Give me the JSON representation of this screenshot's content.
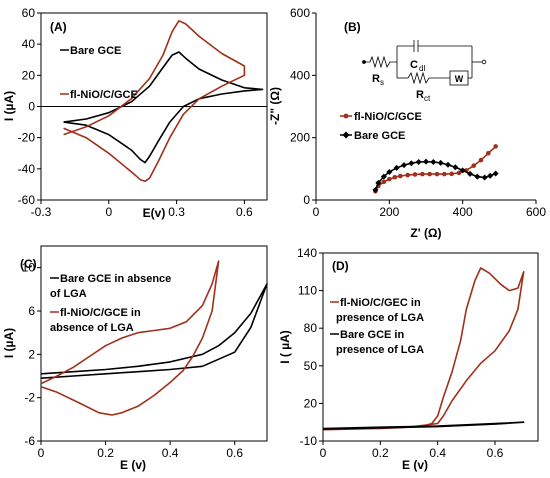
{
  "colors": {
    "bare": "#000000",
    "nio": "#a0301b"
  },
  "chart_data": [
    {
      "id": "A",
      "type": "line",
      "panel_label": "(A)",
      "xlabel": "E(v)",
      "ylabel": "I (µA)",
      "xlim": [
        -0.3,
        0.7
      ],
      "ylim": [
        -60,
        60
      ],
      "xticks": [
        -0.3,
        0,
        0.3,
        0.6
      ],
      "xtick_labels": [
        "-0.3",
        "0",
        "0.3",
        "0.6"
      ],
      "yticks": [
        -60,
        -40,
        -20,
        0,
        20,
        40,
        60
      ],
      "ytick_labels": [
        "-60",
        "-40",
        "-20",
        "0",
        "20",
        "40",
        "60"
      ],
      "legend": [
        "Bare GCE",
        "fl-NiO/C/GCE"
      ],
      "series": [
        {
          "name": "Bare GCE",
          "color": "#000000",
          "marker": "none",
          "points": [
            [
              -0.2,
              -10
            ],
            [
              -0.1,
              -8
            ],
            [
              0,
              -4
            ],
            [
              0.1,
              3
            ],
            [
              0.18,
              13
            ],
            [
              0.24,
              25
            ],
            [
              0.28,
              33
            ],
            [
              0.31,
              35
            ],
            [
              0.34,
              31
            ],
            [
              0.4,
              24
            ],
            [
              0.5,
              17
            ],
            [
              0.6,
              12
            ],
            [
              0.68,
              11
            ],
            [
              0.6,
              10
            ],
            [
              0.5,
              8
            ],
            [
              0.4,
              5
            ],
            [
              0.33,
              0
            ],
            [
              0.27,
              -10
            ],
            [
              0.22,
              -22
            ],
            [
              0.18,
              -32
            ],
            [
              0.16,
              -36
            ],
            [
              0.14,
              -34
            ],
            [
              0.1,
              -28
            ],
            [
              0,
              -18
            ],
            [
              -0.1,
              -12
            ],
            [
              -0.2,
              -10
            ]
          ]
        },
        {
          "name": "fl-NiO/C/GCE",
          "color": "#a0301b",
          "marker": "none",
          "points": [
            [
              -0.2,
              -18
            ],
            [
              -0.1,
              -13
            ],
            [
              0,
              -6
            ],
            [
              0.1,
              5
            ],
            [
              0.18,
              18
            ],
            [
              0.24,
              33
            ],
            [
              0.28,
              48
            ],
            [
              0.31,
              55
            ],
            [
              0.34,
              53
            ],
            [
              0.4,
              45
            ],
            [
              0.5,
              34
            ],
            [
              0.6,
              26
            ],
            [
              0.6,
              20
            ],
            [
              0.5,
              13
            ],
            [
              0.4,
              5
            ],
            [
              0.33,
              -5
            ],
            [
              0.27,
              -20
            ],
            [
              0.22,
              -35
            ],
            [
              0.18,
              -46
            ],
            [
              0.16,
              -48
            ],
            [
              0.14,
              -47
            ],
            [
              0.1,
              -42
            ],
            [
              0,
              -30
            ],
            [
              -0.1,
              -20
            ],
            [
              -0.2,
              -14
            ]
          ]
        }
      ]
    },
    {
      "id": "B",
      "type": "line",
      "panel_label": "(B)",
      "xlabel": "Z' (Ω)",
      "ylabel": "-Z\" (Ω)",
      "xlim": [
        0,
        600
      ],
      "ylim": [
        0,
        600
      ],
      "xticks": [
        0,
        200,
        400,
        600
      ],
      "xtick_labels": [
        "0",
        "200",
        "400",
        "600"
      ],
      "yticks": [
        0,
        200,
        400,
        600
      ],
      "ytick_labels": [
        "0",
        "200",
        "400",
        "600"
      ],
      "legend": [
        "fl-NiO/C/GCE",
        "Bare GCE"
      ],
      "circuit_labels": {
        "rs": "R",
        "rs_sub": "s",
        "cdl": "C",
        "cdl_sub": "dl",
        "rct": "R",
        "rct_sub": "ct",
        "w": "W"
      },
      "series": [
        {
          "name": "fl-NiO/C/GCE",
          "color": "#a0301b",
          "marker": "circle",
          "points": [
            [
              162,
              28
            ],
            [
              170,
              45
            ],
            [
              185,
              58
            ],
            [
              200,
              67
            ],
            [
              215,
              73
            ],
            [
              230,
              77
            ],
            [
              250,
              80
            ],
            [
              270,
              82
            ],
            [
              290,
              83
            ],
            [
              310,
              83
            ],
            [
              330,
              83
            ],
            [
              350,
              83
            ],
            [
              370,
              84
            ],
            [
              390,
              87
            ],
            [
              410,
              95
            ],
            [
              430,
              110
            ],
            [
              450,
              128
            ],
            [
              470,
              150
            ],
            [
              490,
              172
            ]
          ]
        },
        {
          "name": "Bare GCE",
          "color": "#000000",
          "marker": "diamond",
          "points": [
            [
              162,
              32
            ],
            [
              170,
              55
            ],
            [
              185,
              75
            ],
            [
              200,
              90
            ],
            [
              220,
              103
            ],
            [
              240,
              112
            ],
            [
              260,
              118
            ],
            [
              280,
              122
            ],
            [
              300,
              123
            ],
            [
              320,
              122
            ],
            [
              340,
              119
            ],
            [
              360,
              113
            ],
            [
              380,
              105
            ],
            [
              400,
              95
            ],
            [
              420,
              84
            ],
            [
              440,
              75
            ],
            [
              460,
              72
            ],
            [
              475,
              78
            ],
            [
              490,
              85
            ]
          ]
        }
      ]
    },
    {
      "id": "C",
      "type": "line",
      "panel_label": "(C)",
      "xlabel": "E (v)",
      "ylabel": "I (µA)",
      "xlim": [
        0,
        0.7
      ],
      "ylim": [
        -6,
        12
      ],
      "xticks": [
        0,
        0.2,
        0.4,
        0.6
      ],
      "xtick_labels": [
        "0",
        "0.2",
        "0.4",
        "0.6"
      ],
      "yticks": [
        -6,
        -2,
        2,
        6,
        10
      ],
      "ytick_labels": [
        "-6",
        "-2",
        "2",
        "6",
        "10"
      ],
      "legend": [
        "Bare GCE in absence of LGA",
        "fl-NiO/C/GCE in absence of LGA"
      ],
      "legend_lines": [
        [
          "Bare GCE in absence",
          "of LGA"
        ],
        [
          "fl-NiO/C/GCE in",
          "absence of LGA"
        ]
      ],
      "series": [
        {
          "name": "Bare GCE in absence of LGA",
          "color": "#000000",
          "marker": "none",
          "points": [
            [
              0,
              0.2
            ],
            [
              0.1,
              0.4
            ],
            [
              0.2,
              0.6
            ],
            [
              0.3,
              0.9
            ],
            [
              0.4,
              1.3
            ],
            [
              0.5,
              2
            ],
            [
              0.55,
              2.8
            ],
            [
              0.6,
              4
            ],
            [
              0.65,
              5.8
            ],
            [
              0.7,
              8.5
            ],
            [
              0.65,
              4.5
            ],
            [
              0.6,
              2.2
            ],
            [
              0.5,
              0.9
            ],
            [
              0.4,
              0.6
            ],
            [
              0.3,
              0.4
            ],
            [
              0.2,
              0.2
            ],
            [
              0.1,
              0
            ],
            [
              0,
              -0.2
            ]
          ]
        },
        {
          "name": "fl-NiO/C/GCE in absence of LGA",
          "color": "#a0301b",
          "marker": "none",
          "points": [
            [
              0,
              -0.7
            ],
            [
              0.05,
              0
            ],
            [
              0.1,
              0.8
            ],
            [
              0.15,
              1.8
            ],
            [
              0.2,
              2.8
            ],
            [
              0.25,
              3.5
            ],
            [
              0.3,
              4
            ],
            [
              0.35,
              4.2
            ],
            [
              0.4,
              4.4
            ],
            [
              0.45,
              5
            ],
            [
              0.5,
              6.5
            ],
            [
              0.53,
              8.5
            ],
            [
              0.55,
              10.6
            ],
            [
              0.53,
              6
            ],
            [
              0.5,
              3.5
            ],
            [
              0.47,
              1.8
            ],
            [
              0.44,
              0.5
            ],
            [
              0.4,
              -0.6
            ],
            [
              0.35,
              -1.8
            ],
            [
              0.3,
              -2.8
            ],
            [
              0.25,
              -3.4
            ],
            [
              0.22,
              -3.6
            ],
            [
              0.18,
              -3.4
            ],
            [
              0.12,
              -2.5
            ],
            [
              0.05,
              -1.5
            ],
            [
              0,
              -1
            ]
          ]
        }
      ]
    },
    {
      "id": "D",
      "type": "line",
      "panel_label": "(D)",
      "xlabel": "E (v)",
      "ylabel": "I ( µA)",
      "xlim": [
        0,
        0.75
      ],
      "ylim": [
        -10,
        140
      ],
      "xticks": [
        0,
        0.2,
        0.4,
        0.6
      ],
      "xtick_labels": [
        "0",
        "0.2",
        "0.4",
        "0.6"
      ],
      "yticks": [
        -10,
        20,
        50,
        80,
        110,
        140
      ],
      "ytick_labels": [
        "-10",
        "20",
        "50",
        "80",
        "110",
        "140"
      ],
      "legend": [
        "fl-NiO/C/GEC in presence of LGA",
        "Bare GCE in presence of LGA"
      ],
      "legend_lines": [
        [
          "fl-NiO/C/GEC in",
          "presence of LGA"
        ],
        [
          "Bare GCE in",
          "presence of LGA"
        ]
      ],
      "series": [
        {
          "name": "fl-NiO/C/GEC in presence of LGA",
          "color": "#a0301b",
          "marker": "none",
          "points": [
            [
              0,
              -1
            ],
            [
              0.1,
              0
            ],
            [
              0.2,
              0.5
            ],
            [
              0.3,
              1
            ],
            [
              0.35,
              2
            ],
            [
              0.38,
              4
            ],
            [
              0.4,
              10
            ],
            [
              0.42,
              25
            ],
            [
              0.45,
              45
            ],
            [
              0.48,
              70
            ],
            [
              0.5,
              95
            ],
            [
              0.53,
              118
            ],
            [
              0.55,
              128
            ],
            [
              0.58,
              124
            ],
            [
              0.62,
              115
            ],
            [
              0.65,
              110
            ],
            [
              0.68,
              112
            ],
            [
              0.7,
              125
            ],
            [
              0.68,
              95
            ],
            [
              0.65,
              78
            ],
            [
              0.6,
              62
            ],
            [
              0.55,
              52
            ],
            [
              0.5,
              38
            ],
            [
              0.45,
              22
            ],
            [
              0.42,
              10
            ],
            [
              0.4,
              4
            ],
            [
              0.3,
              1
            ],
            [
              0.2,
              0
            ],
            [
              0.1,
              -0.5
            ],
            [
              0,
              -1
            ]
          ]
        },
        {
          "name": "Bare GCE in presence of LGA",
          "color": "#000000",
          "marker": "none",
          "points": [
            [
              0,
              0
            ],
            [
              0.2,
              1
            ],
            [
              0.4,
              2
            ],
            [
              0.6,
              4
            ],
            [
              0.7,
              5
            ],
            [
              0.6,
              3.5
            ],
            [
              0.4,
              1.5
            ],
            [
              0.2,
              0.5
            ],
            [
              0,
              -0.5
            ]
          ]
        }
      ]
    }
  ]
}
